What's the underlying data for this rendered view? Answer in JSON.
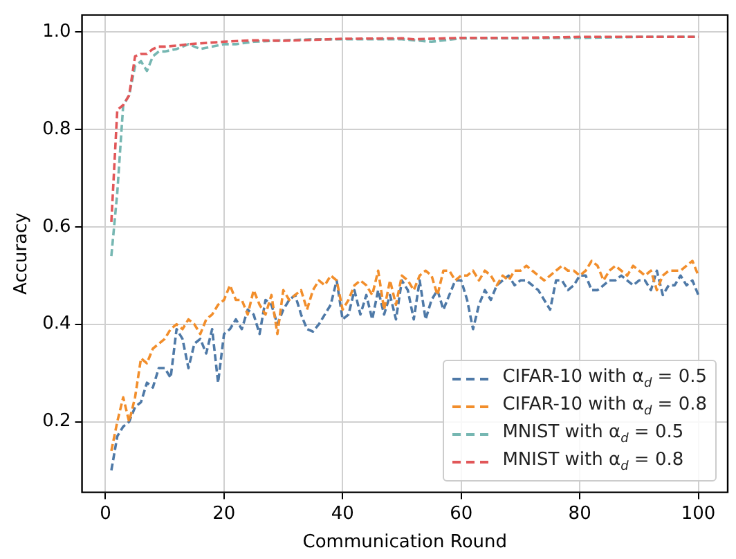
{
  "chart_data": {
    "type": "line",
    "xlabel": "Communication Round",
    "ylabel": "Accuracy",
    "xlim": [
      -3.95,
      104.95
    ],
    "xticks": [
      0,
      20,
      40,
      60,
      80,
      100
    ],
    "ylim": [
      0.055,
      1.035
    ],
    "yticks": [
      {
        "value": 0.2,
        "label": "0.2"
      },
      {
        "value": 0.4,
        "label": "0.4"
      },
      {
        "value": 0.6,
        "label": "0.6"
      },
      {
        "value": 0.8,
        "label": "0.8"
      },
      {
        "value": 1.0,
        "label": "1.0"
      }
    ],
    "grid": true,
    "legend": "bottom right",
    "line_style": "dashed",
    "marker": "none",
    "series": [
      {
        "name": "CIFAR-10 with α$_{d}$ = 0.5",
        "color": "#4e79a7",
        "x": [
          1,
          2,
          3,
          4,
          5,
          6,
          7,
          8,
          9,
          10,
          11,
          12,
          13,
          14,
          15,
          16,
          17,
          18,
          19,
          20,
          21,
          22,
          23,
          24,
          25,
          26,
          27,
          28,
          29,
          30,
          31,
          32,
          33,
          34,
          35,
          36,
          37,
          38,
          39,
          40,
          41,
          42,
          43,
          44,
          45,
          46,
          47,
          48,
          49,
          50,
          51,
          52,
          53,
          54,
          55,
          56,
          57,
          58,
          59,
          60,
          61,
          62,
          63,
          64,
          65,
          66,
          67,
          68,
          69,
          70,
          71,
          72,
          73,
          74,
          75,
          76,
          77,
          78,
          79,
          80,
          81,
          82,
          83,
          84,
          85,
          86,
          87,
          88,
          89,
          90,
          91,
          92,
          93,
          94,
          95,
          96,
          97,
          98,
          99,
          100
        ],
        "values": [
          0.1,
          0.17,
          0.19,
          0.2,
          0.23,
          0.24,
          0.28,
          0.27,
          0.31,
          0.31,
          0.29,
          0.39,
          0.37,
          0.31,
          0.36,
          0.37,
          0.34,
          0.39,
          0.28,
          0.38,
          0.39,
          0.41,
          0.39,
          0.43,
          0.42,
          0.38,
          0.45,
          0.44,
          0.4,
          0.43,
          0.45,
          0.46,
          0.42,
          0.39,
          0.385,
          0.4,
          0.42,
          0.44,
          0.49,
          0.41,
          0.42,
          0.47,
          0.42,
          0.46,
          0.41,
          0.47,
          0.42,
          0.46,
          0.41,
          0.49,
          0.47,
          0.41,
          0.49,
          0.41,
          0.45,
          0.47,
          0.43,
          0.46,
          0.49,
          0.49,
          0.45,
          0.39,
          0.44,
          0.47,
          0.45,
          0.48,
          0.49,
          0.5,
          0.48,
          0.49,
          0.49,
          0.48,
          0.47,
          0.45,
          0.43,
          0.49,
          0.49,
          0.47,
          0.48,
          0.5,
          0.5,
          0.47,
          0.47,
          0.48,
          0.49,
          0.49,
          0.5,
          0.49,
          0.48,
          0.49,
          0.49,
          0.47,
          0.51,
          0.46,
          0.48,
          0.48,
          0.5,
          0.48,
          0.49,
          0.46
        ]
      },
      {
        "name": "CIFAR-10 with α$_{d}$ = 0.8",
        "color": "#f28e2b",
        "x": [
          1,
          2,
          3,
          4,
          5,
          6,
          7,
          8,
          9,
          10,
          11,
          12,
          13,
          14,
          15,
          16,
          17,
          18,
          19,
          20,
          21,
          22,
          23,
          24,
          25,
          26,
          27,
          28,
          29,
          30,
          31,
          32,
          33,
          34,
          35,
          36,
          37,
          38,
          39,
          40,
          41,
          42,
          43,
          44,
          45,
          46,
          47,
          48,
          49,
          50,
          51,
          52,
          53,
          54,
          55,
          56,
          57,
          58,
          59,
          60,
          61,
          62,
          63,
          64,
          65,
          66,
          67,
          68,
          69,
          70,
          71,
          72,
          73,
          74,
          75,
          76,
          77,
          78,
          79,
          80,
          81,
          82,
          83,
          84,
          85,
          86,
          87,
          88,
          89,
          90,
          91,
          92,
          93,
          94,
          95,
          96,
          97,
          98,
          99,
          100
        ],
        "values": [
          0.14,
          0.2,
          0.25,
          0.2,
          0.25,
          0.33,
          0.32,
          0.35,
          0.36,
          0.37,
          0.39,
          0.4,
          0.39,
          0.41,
          0.4,
          0.38,
          0.41,
          0.42,
          0.44,
          0.45,
          0.48,
          0.45,
          0.45,
          0.42,
          0.47,
          0.44,
          0.42,
          0.46,
          0.38,
          0.47,
          0.45,
          0.46,
          0.47,
          0.43,
          0.47,
          0.49,
          0.48,
          0.5,
          0.49,
          0.43,
          0.45,
          0.48,
          0.49,
          0.48,
          0.46,
          0.51,
          0.43,
          0.49,
          0.44,
          0.5,
          0.49,
          0.47,
          0.5,
          0.51,
          0.5,
          0.46,
          0.51,
          0.51,
          0.49,
          0.5,
          0.5,
          0.51,
          0.49,
          0.51,
          0.5,
          0.48,
          0.5,
          0.49,
          0.51,
          0.51,
          0.52,
          0.51,
          0.5,
          0.49,
          0.5,
          0.51,
          0.52,
          0.51,
          0.51,
          0.5,
          0.51,
          0.53,
          0.52,
          0.49,
          0.51,
          0.52,
          0.51,
          0.5,
          0.52,
          0.51,
          0.5,
          0.51,
          0.47,
          0.5,
          0.51,
          0.51,
          0.51,
          0.52,
          0.53,
          0.5
        ]
      },
      {
        "name": "MNIST with α$_{d}$ = 0.5",
        "color": "#76b7b2",
        "x": [
          1,
          2,
          3,
          4,
          5,
          6,
          7,
          8,
          9,
          10,
          12,
          14,
          16,
          20,
          22,
          25,
          30,
          35,
          40,
          50,
          55,
          60,
          70,
          80,
          90,
          100
        ],
        "values": [
          0.54,
          0.67,
          0.85,
          0.87,
          0.93,
          0.94,
          0.92,
          0.95,
          0.96,
          0.96,
          0.965,
          0.975,
          0.965,
          0.975,
          0.975,
          0.98,
          0.983,
          0.985,
          0.985,
          0.985,
          0.98,
          0.987,
          0.987,
          0.988,
          0.99,
          0.99
        ]
      },
      {
        "name": "MNIST with α$_{d}$ = 0.8",
        "color": "#e15759",
        "x": [
          1,
          2,
          3,
          4,
          5,
          6,
          7,
          8,
          9,
          10,
          12,
          14,
          20,
          25,
          30,
          40,
          50,
          52,
          60,
          70,
          80,
          90,
          100
        ],
        "values": [
          0.61,
          0.84,
          0.85,
          0.87,
          0.95,
          0.955,
          0.955,
          0.965,
          0.97,
          0.97,
          0.972,
          0.975,
          0.98,
          0.983,
          0.982,
          0.986,
          0.987,
          0.985,
          0.988,
          0.988,
          0.99,
          0.99,
          0.99
        ]
      }
    ]
  }
}
